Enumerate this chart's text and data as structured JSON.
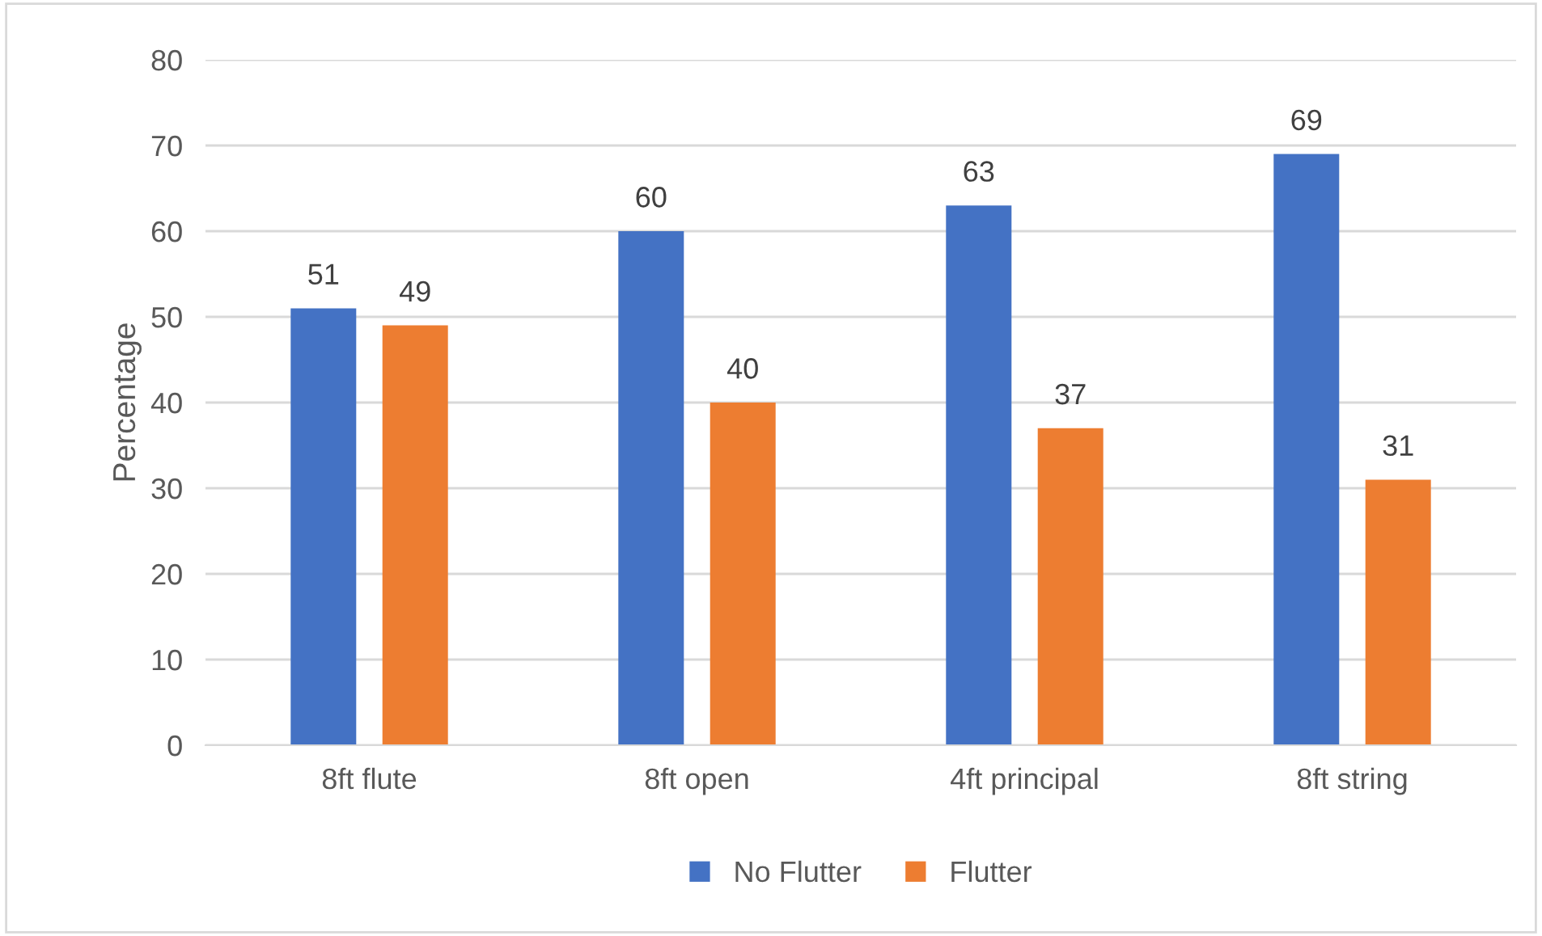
{
  "chart_data": {
    "type": "bar",
    "ylabel": "Percentage",
    "categories": [
      "8ft flute",
      "8ft open",
      "4ft principal",
      "8ft string"
    ],
    "series": [
      {
        "name": "No Flutter",
        "color": "#4472c4",
        "values": [
          51,
          60,
          63,
          69
        ]
      },
      {
        "name": "Flutter",
        "color": "#ed7d31",
        "values": [
          49,
          40,
          37,
          31
        ]
      }
    ],
    "ylim": [
      0,
      80
    ],
    "yticks": [
      0,
      10,
      20,
      30,
      40,
      50,
      60,
      70,
      80
    ],
    "grid": "y",
    "legend": "bottom",
    "data_labels": true
  }
}
